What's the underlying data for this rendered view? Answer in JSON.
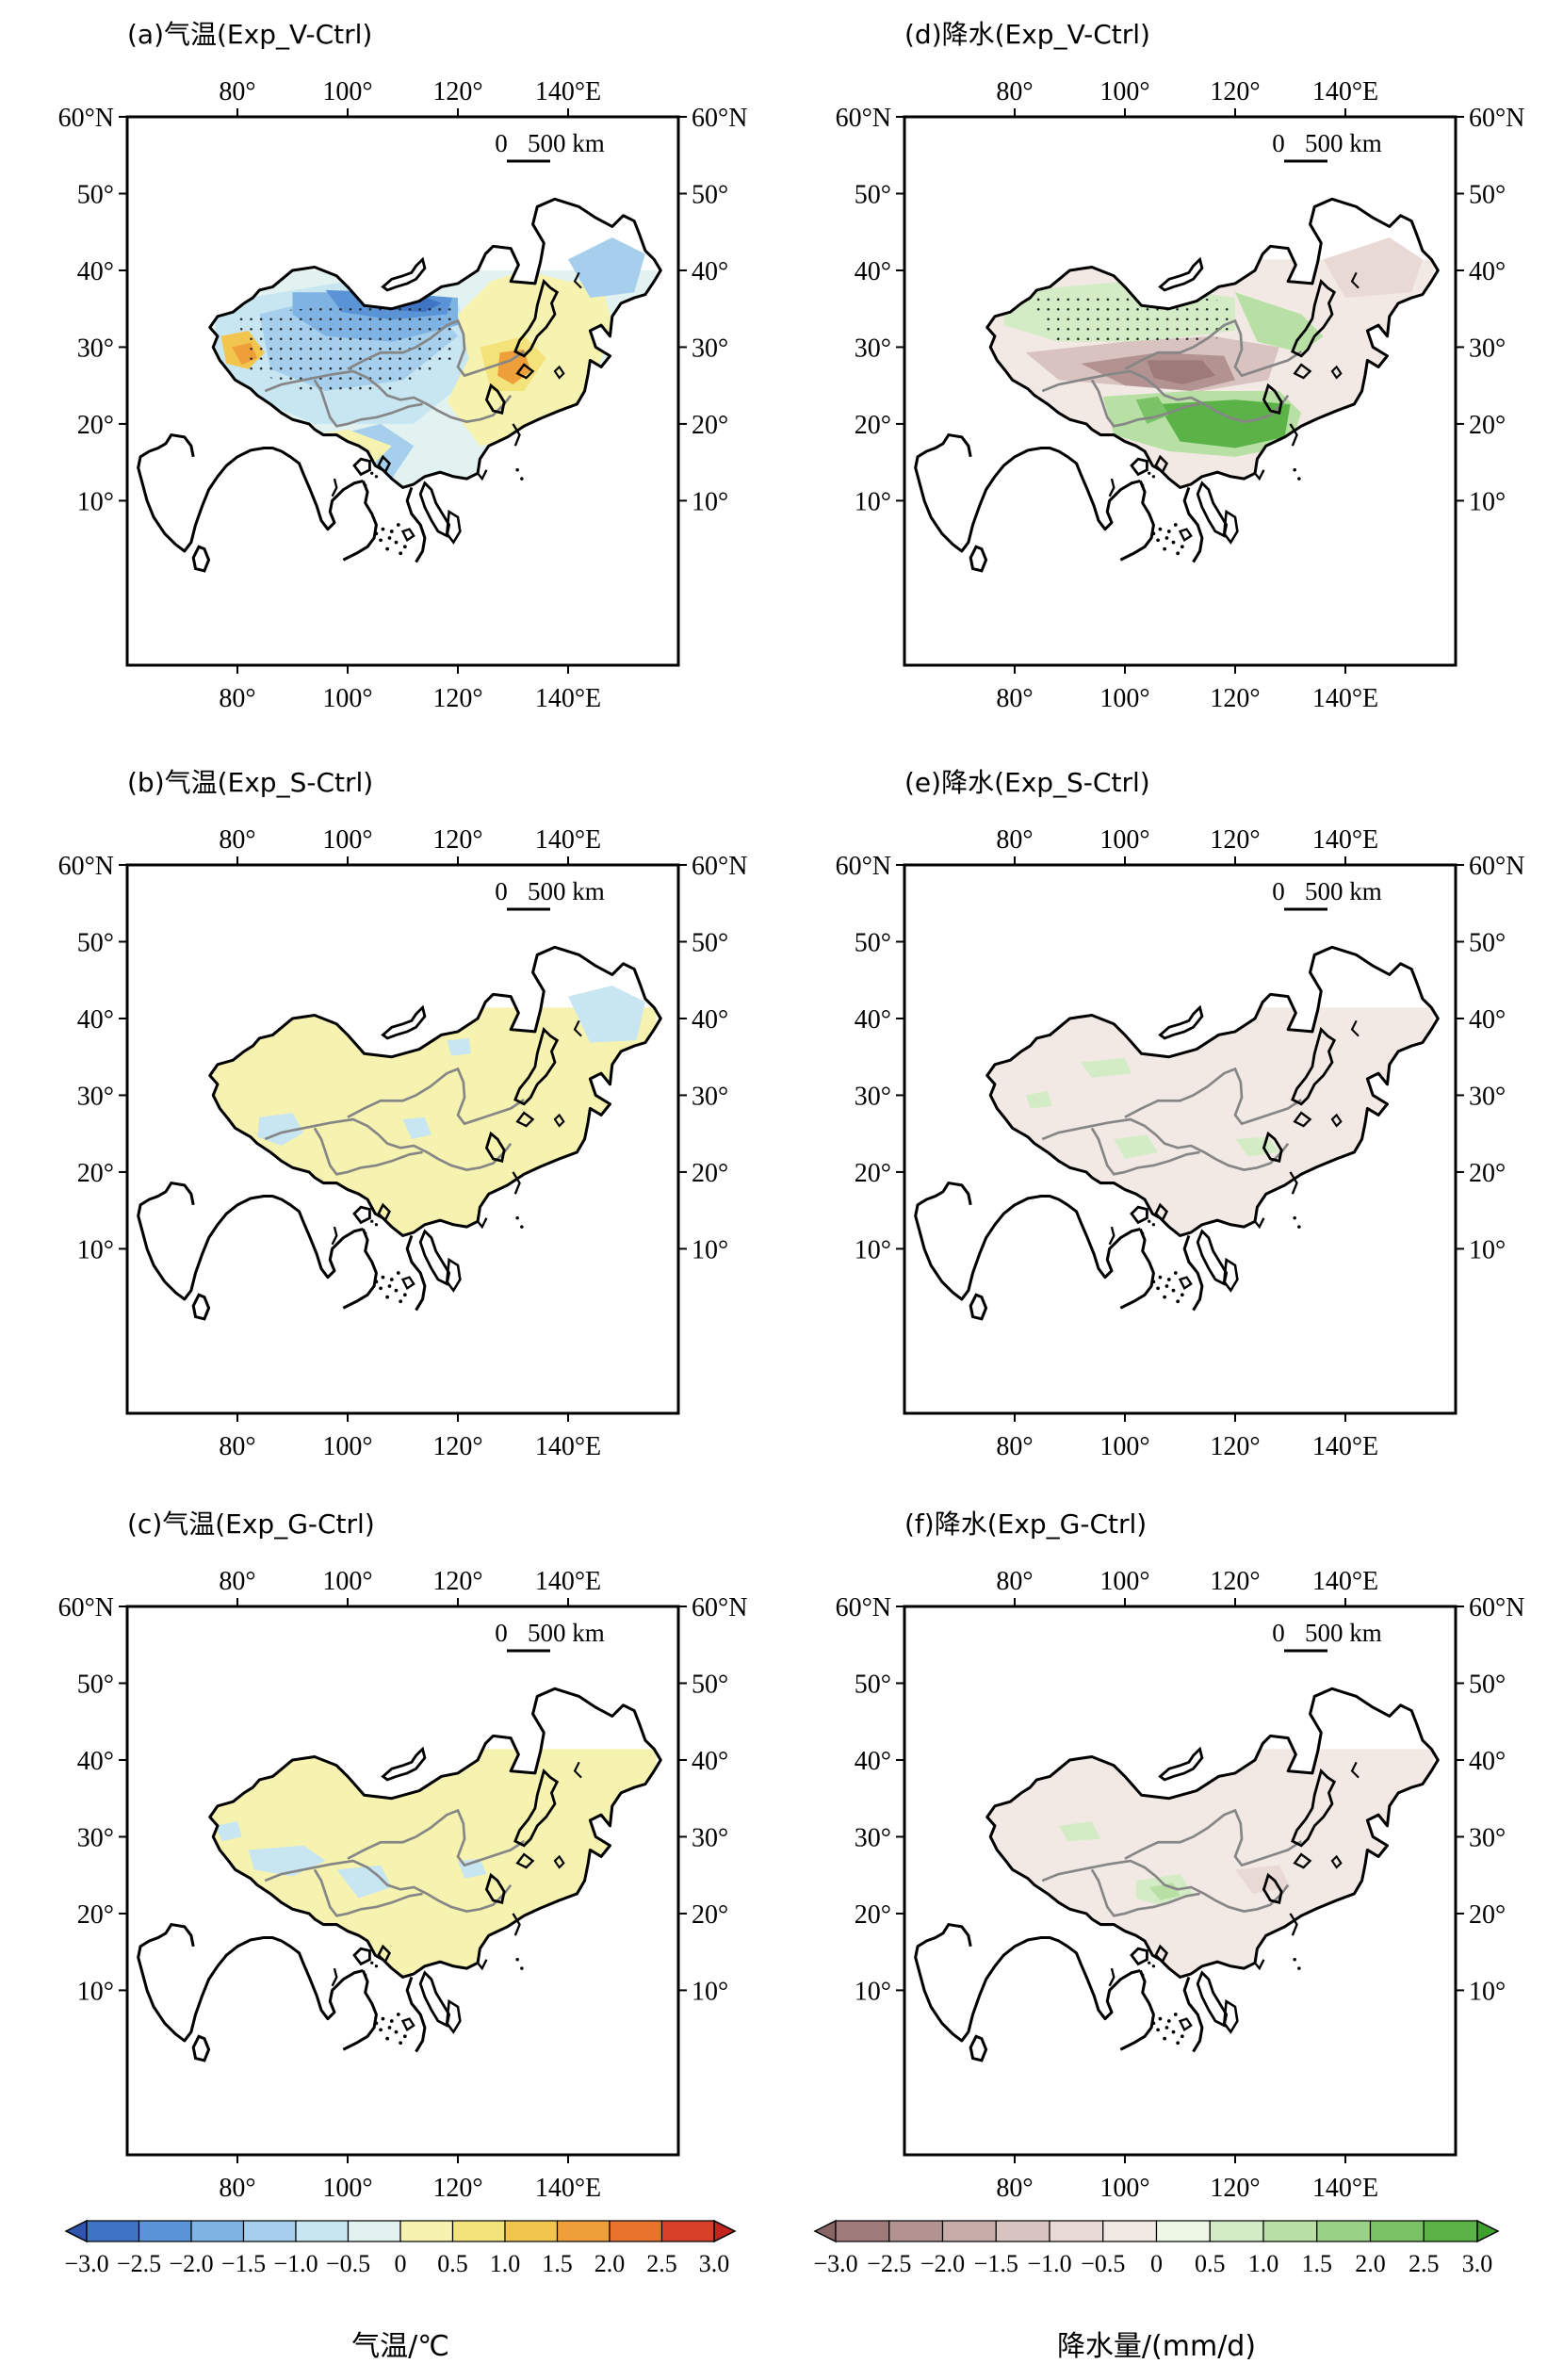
{
  "panels": [
    {
      "id": "a",
      "title": "(a)气温(Exp_V-Ctrl)",
      "variable": "temperature"
    },
    {
      "id": "b",
      "title": "(b)气温(Exp_S-Ctrl)",
      "variable": "temperature"
    },
    {
      "id": "c",
      "title": "(c)气温(Exp_G-Ctrl)",
      "variable": "temperature"
    },
    {
      "id": "d",
      "title": "(d)降水(Exp_V-Ctrl)",
      "variable": "precipitation"
    },
    {
      "id": "e",
      "title": "(e)降水(Exp_S-Ctrl)",
      "variable": "precipitation"
    },
    {
      "id": "f",
      "title": "(f)降水(Exp_G-Ctrl)",
      "variable": "precipitation"
    }
  ],
  "axes": {
    "lon_ticks": [
      "80°",
      "100°",
      "120°",
      "140°E"
    ],
    "lat_ticks_left": [
      "60°N",
      "50°",
      "40°",
      "30°",
      "20°",
      "10°"
    ],
    "lat_ticks_right": [
      "60°N",
      "50°",
      "40°",
      "30°",
      "20°",
      "10°"
    ]
  },
  "scale_bar": {
    "zero": "0",
    "label": "500 km"
  },
  "colorbars": [
    {
      "id": "temperature",
      "label": "气温/℃",
      "ticks": [
        "−3.0",
        "−2.5",
        "−2.0",
        "−1.5",
        "−1.0",
        "−0.5",
        "0",
        "0.5",
        "1.0",
        "1.5",
        "2.0",
        "2.5",
        "3.0"
      ],
      "colors": [
        "#2d55ab",
        "#3f74c4",
        "#5b94d6",
        "#7fb3e3",
        "#a5cfec",
        "#c7e6f1",
        "#e2f2f0",
        "#f6f3b0",
        "#f4e27a",
        "#f2c64e",
        "#ee9f3a",
        "#e9732d",
        "#d9402a",
        "#c2241f"
      ]
    },
    {
      "id": "precipitation",
      "label": "降水量/(mm/d)",
      "ticks": [
        "−3.0",
        "−2.5",
        "−2.0",
        "−1.5",
        "−1.0",
        "−0.5",
        "0",
        "0.5",
        "1.0",
        "1.5",
        "2.0",
        "2.5",
        "3.0"
      ],
      "colors": [
        "#8a6566",
        "#9e7a7a",
        "#b39392",
        "#c7acaa",
        "#d8c3c0",
        "#e9d9d5",
        "#f3e9e4",
        "#eef6e6",
        "#d4ecc6",
        "#b8e0a5",
        "#99d285",
        "#79c366",
        "#5bb348",
        "#3fa02d"
      ]
    }
  ]
}
